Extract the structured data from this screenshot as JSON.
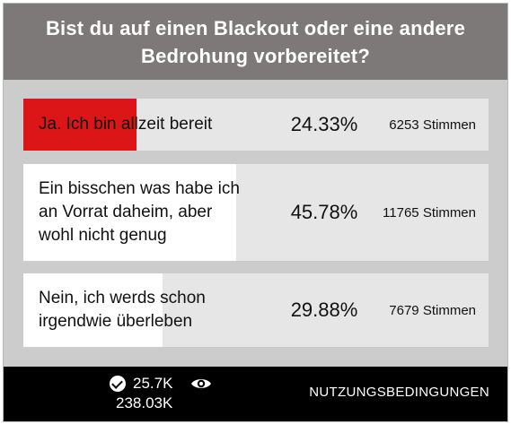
{
  "poll": {
    "question": "Bist du auf einen Blackout oder eine andere Bedrohung vorbereitet?",
    "accent_color": "#dc1616",
    "answers": [
      {
        "label_lines": [
          "Ja. Ich bin allzeit bereit"
        ],
        "percent": 24.33,
        "percent_text": "24.33%",
        "votes_text": "6253 Stimmen",
        "selected": true
      },
      {
        "label_lines": [
          "Ein bisschen was habe ich",
          "an Vorrat daheim, aber",
          "wohl nicht genug"
        ],
        "percent": 45.78,
        "percent_text": "45.78%",
        "votes_text": "11765 Stimmen",
        "selected": false
      },
      {
        "label_lines": [
          "Nein, ich werds schon",
          "irgendwie überleben"
        ],
        "percent": 29.88,
        "percent_text": "29.88%",
        "votes_text": "7679 Stimmen",
        "selected": false
      }
    ]
  },
  "footer": {
    "votes_icon": "check-circle-icon",
    "votes_count": "25.7K",
    "views_icon": "eye-icon",
    "views_count": "238.03K",
    "terms_label": "NUTZUNGSBEDINGUNGEN"
  }
}
